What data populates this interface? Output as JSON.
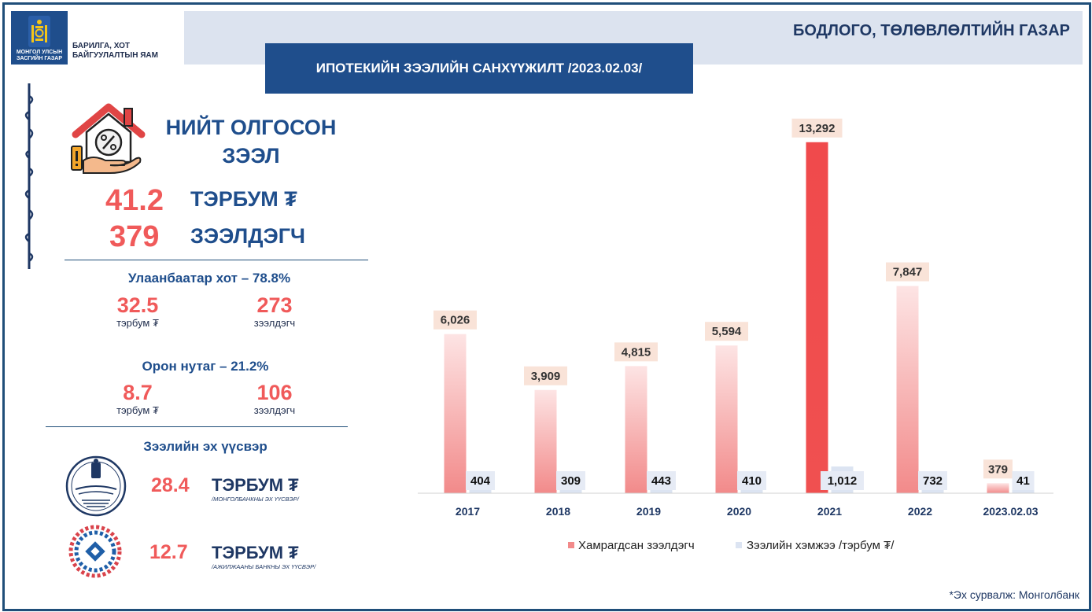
{
  "header": {
    "logo_text_line1": "МОНГОЛ УЛСЫН",
    "logo_text_line2": "ЗАСГИЙН ГАЗАР",
    "ministry_line1": "БАРИЛГА, ХОТ",
    "ministry_line2": "БАЙГУУЛАЛТЫН ЯАМ",
    "department": "БОДЛОГО, ТӨЛӨВЛӨЛТИЙН ГАЗАР",
    "main_title": "ИПОТЕКИЙН ЗЭЭЛИЙН САНХҮҮЖИЛТ /2023.02.03/"
  },
  "summary": {
    "title_line1": "НИЙТ ОЛГОСОН",
    "title_line2": "ЗЭЭЛ",
    "amount": "41.2",
    "amount_unit": "ТЭРБУМ ₮",
    "borrowers": "379",
    "borrowers_unit": "ЗЭЭЛДЭГЧ"
  },
  "regions": [
    {
      "heading": "Улаанбаатар хот – 78.8%",
      "amount": "32.5",
      "amount_unit": "тэрбум ₮",
      "borrowers": "273",
      "borrowers_unit": "зээлдэгч"
    },
    {
      "heading": "Орон нутаг – 21.2%",
      "amount": "8.7",
      "amount_unit": "тэрбум ₮",
      "borrowers": "106",
      "borrowers_unit": "зээлдэгч"
    }
  ],
  "sources": {
    "heading": "Зээлийн эх үүсвэр",
    "items": [
      {
        "value": "28.4",
        "unit": "ТЭРБУМ ₮",
        "note": "/МОНГОЛБАНКНЫ ЭХ ҮҮСВЭР/"
      },
      {
        "value": "12.7",
        "unit": "ТЭРБУМ ₮",
        "note": "/АЖИЛЖААНЫ БАНКНЫ ЭХ ҮҮСВЭР/"
      }
    ]
  },
  "colors": {
    "accent_red": "#f05a5a",
    "navy": "#1f4e8c",
    "bar_pink": "#f7c3c3",
    "bar_highlight": "#f0484b",
    "bar_light": "#dce4f2"
  },
  "chart_data": {
    "type": "bar",
    "categories": [
      "2017",
      "2018",
      "2019",
      "2020",
      "2021",
      "2022",
      "2023.02.03"
    ],
    "series": [
      {
        "name": "Хамрагдсан зээлдэгч",
        "values": [
          6026,
          3909,
          4815,
          5594,
          13292,
          7847,
          379
        ],
        "labels": [
          "6,026",
          "3,909",
          "4,815",
          "5,594",
          "13,292",
          "7,847",
          "379"
        ]
      },
      {
        "name": "Зээлийн хэмжээ /тэрбум ₮/",
        "values": [
          404,
          309,
          443,
          410,
          1012,
          732,
          41
        ],
        "labels": [
          "404",
          "309",
          "443",
          "410",
          "1,012",
          "732",
          "41"
        ]
      }
    ],
    "highlight_index": 4,
    "ylim": [
      0,
      14000
    ],
    "legend": "bottom",
    "grid": false
  },
  "footnote": "*Эх сурвалж: Монголбанк"
}
